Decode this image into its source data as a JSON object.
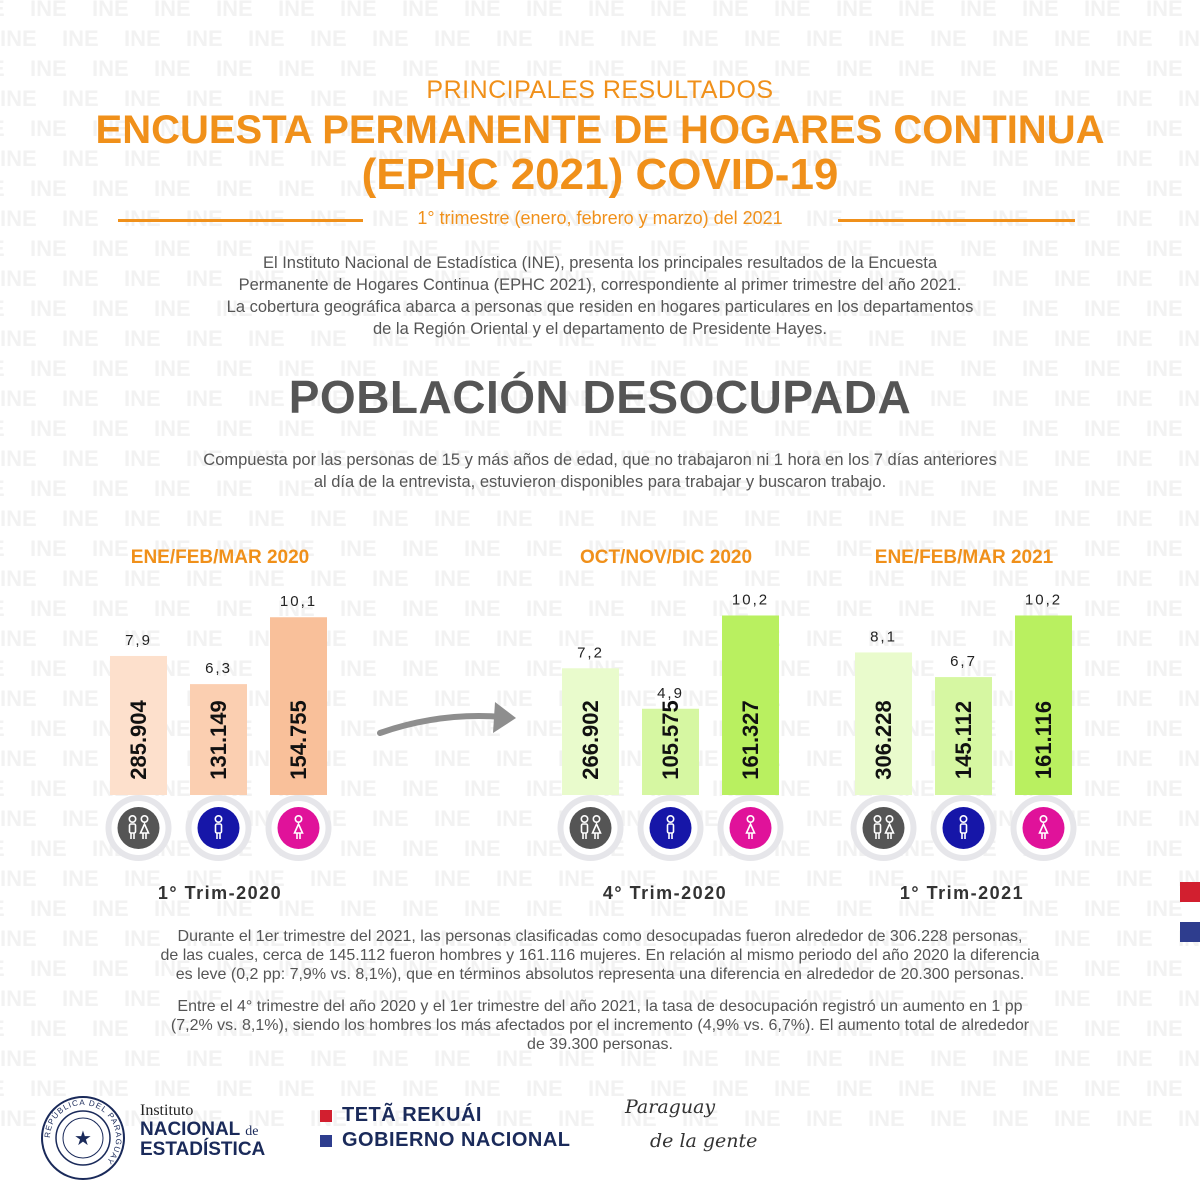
{
  "watermark_text": "INE",
  "header": {
    "kicker": "PRINCIPALES RESULTADOS",
    "title_line1": "ENCUESTA PERMANENTE DE HOGARES CONTINUA",
    "title_line2": "(EPHC 2021) COVID-19",
    "subtitle": "1° trimestre (enero, febrero y marzo) del 2021"
  },
  "intro": [
    "El Instituto Nacional de Estadística (INE), presenta los principales resultados de la Encuesta",
    "Permanente de Hogares Continua (EPHC 2021), correspondiente al primer trimestre del año 2021.",
    "La cobertura geográfica abarca a personas que residen en hogares particulares en los departamentos",
    "de la Región Oriental y el departamento de Presidente Hayes."
  ],
  "section_title": "POBLACIÓN DESOCUPADA",
  "definition": [
    "Compuesta por las personas de 15 y más años de edad,  que no trabajaron ni 1 hora en los 7 días anteriores",
    "al día de la entrevista, estuvieron disponibles para trabajar y buscaron trabajo."
  ],
  "chart_data": {
    "type": "bar",
    "categories": [
      "Total",
      "Hombres",
      "Mujeres"
    ],
    "groups": [
      {
        "period_label": "ENE/FEB/MAR 2020",
        "trim_label": "1° Trim-2020",
        "rates": [
          "7,9",
          "6,3",
          "10,1"
        ],
        "rate_values": [
          7.9,
          6.3,
          10.1
        ],
        "counts": [
          "285.904",
          "131.149",
          "154.755"
        ],
        "palette": [
          "#fde0cc",
          "#fbcfb1",
          "#f9c09a"
        ]
      },
      {
        "period_label": "OCT/NOV/DIC 2020",
        "trim_label": "4° Trim-2020",
        "rates": [
          "7,2",
          "4,9",
          "10,2"
        ],
        "rate_values": [
          7.2,
          4.9,
          10.2
        ],
        "counts": [
          "266.902",
          "105.575",
          "161.327"
        ],
        "palette": [
          "#e9fbcc",
          "#d6f7a2",
          "#b9f060"
        ]
      },
      {
        "period_label": "ENE/FEB/MAR 2021",
        "trim_label": "1° Trim-2021",
        "rates": [
          "8,1",
          "6,7",
          "10,2"
        ],
        "rate_values": [
          8.1,
          6.7,
          10.2
        ],
        "counts": [
          "306.228",
          "145.112",
          "161.116"
        ],
        "palette": [
          "#e9fbcc",
          "#d6f7a2",
          "#b9f060"
        ]
      }
    ],
    "icons": [
      "people-icon",
      "male-icon",
      "female-icon"
    ],
    "icon_colors": [
      "#555555",
      "#1616a8",
      "#e0129a"
    ]
  },
  "paragraph1": [
    "Durante el 1er trimestre del 2021, las personas clasificadas como desocupadas fueron alrededor de 306.228 personas,",
    "de las cuales, cerca de 145.112 fueron hombres y 161.116 mujeres. En relación al mismo periodo del año 2020 la diferencia",
    "es leve (0,2 pp: 7,9% vs. 8,1%), que en términos absolutos representa una diferencia en alrededor de 20.300 personas."
  ],
  "paragraph2": [
    "Entre el 4° trimestre del año 2020 y el 1er trimestre del año 2021, la tasa de desocupación registró un aumento en 1 pp",
    "(7,2% vs. 8,1%), siendo los hombres los más afectados por el incremento (4,9% vs. 6,7%). El aumento total de alrededor",
    "de 39.300 personas."
  ],
  "footer": {
    "ine_line1": "Instituto",
    "ine_line2": "NACIONAL",
    "ine_de": "de",
    "ine_line3": "ESTADÍSTICA",
    "seal_text": "REPÚBLICA DEL PARAGUAY",
    "gov_line1": "TETÃ REKUÁI",
    "gov_line2": "GOBIERNO NACIONAL",
    "slogan_line1": "Paraguay",
    "slogan_line2": "de la gente"
  },
  "colors": {
    "accent_orange": "#f0901a",
    "navy": "#1a2a5a",
    "flag_red": "#d21f2f",
    "flag_blue": "#2e3d8e"
  }
}
